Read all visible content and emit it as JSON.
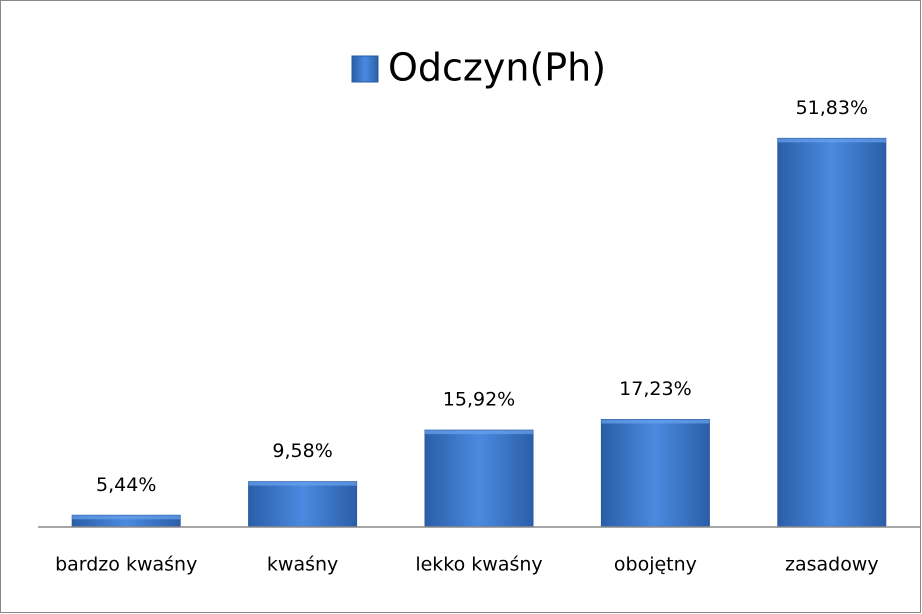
{
  "chart_data": {
    "type": "bar",
    "categories": [
      "bardzo kwaśny",
      "kwaśny",
      "lekko kwaśny",
      "obojętny",
      "zasadowy"
    ],
    "series": [
      {
        "name": "Odczyn(Ph)",
        "color": "#3f7fd4",
        "values": [
          5.44,
          9.58,
          15.92,
          17.23,
          51.83
        ],
        "value_labels": [
          "5,44%",
          "9,58%",
          "15,92%",
          "17,23%",
          "51,83%"
        ]
      }
    ],
    "ylim": [
      4,
      60
    ],
    "legend": "top"
  }
}
